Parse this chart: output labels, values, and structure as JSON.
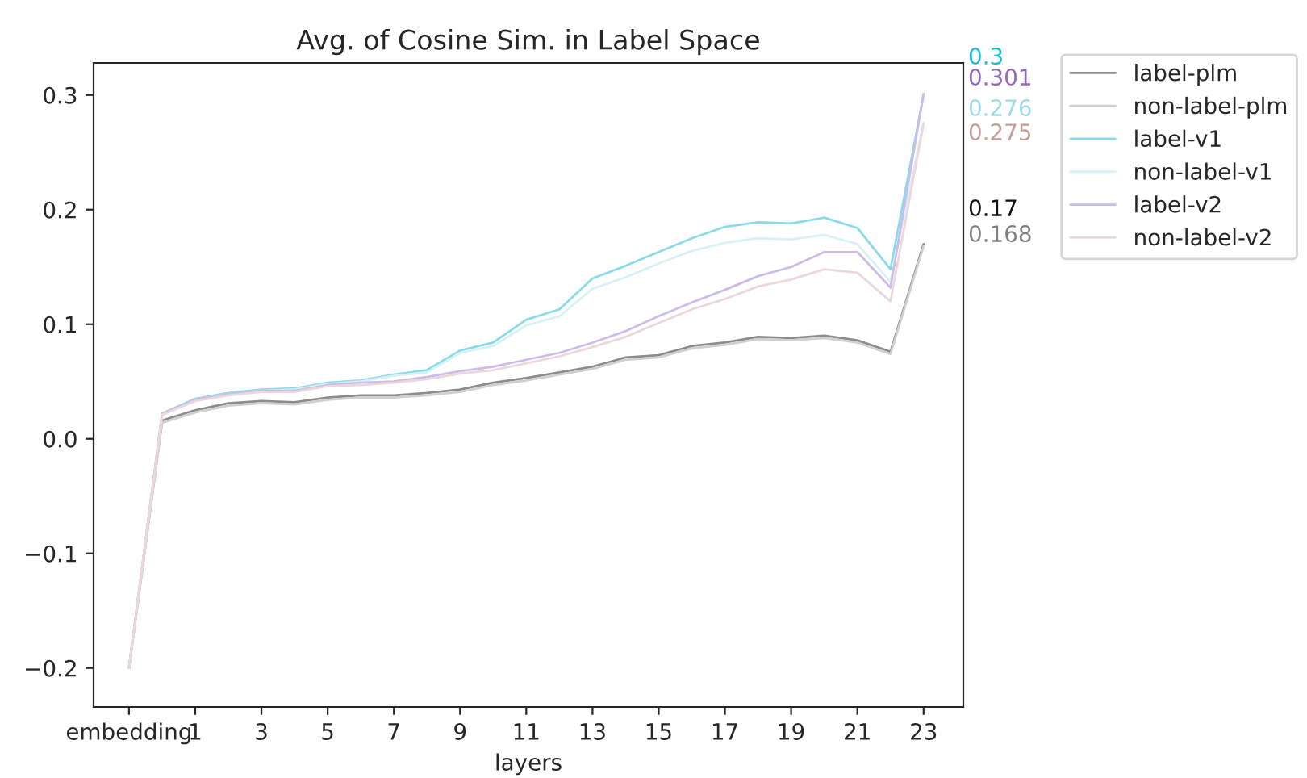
{
  "chart_data": {
    "type": "line",
    "title": "Avg. of Cosine Sim. in Label Space",
    "xlabel": "layers",
    "categories": [
      "embedding",
      null,
      "1",
      null,
      "3",
      null,
      "5",
      null,
      "7",
      null,
      "9",
      null,
      "11",
      null,
      "13",
      null,
      "15",
      null,
      "17",
      null,
      "19",
      null,
      "21",
      null,
      "23"
    ],
    "series": [
      {
        "name": "label-plm",
        "color": "#8c8c8c",
        "values": [
          -0.2,
          0.016,
          0.025,
          0.031,
          0.033,
          0.032,
          0.036,
          0.038,
          0.038,
          0.04,
          0.043,
          0.049,
          0.053,
          0.058,
          0.063,
          0.071,
          0.073,
          0.081,
          0.084,
          0.089,
          0.088,
          0.09,
          0.086,
          0.076,
          0.17
        ]
      },
      {
        "name": "non-label-plm",
        "color": "#d0d0d0",
        "values": [
          -0.2,
          0.014,
          0.023,
          0.029,
          0.031,
          0.03,
          0.034,
          0.036,
          0.036,
          0.038,
          0.041,
          0.047,
          0.051,
          0.056,
          0.061,
          0.069,
          0.071,
          0.079,
          0.082,
          0.087,
          0.086,
          0.088,
          0.084,
          0.074,
          0.168
        ]
      },
      {
        "name": "label-v1",
        "color": "#8adbe8",
        "values": [
          -0.2,
          0.022,
          0.035,
          0.04,
          0.043,
          0.044,
          0.049,
          0.051,
          0.056,
          0.06,
          0.077,
          0.084,
          0.104,
          0.113,
          0.14,
          0.151,
          0.163,
          0.175,
          0.185,
          0.189,
          0.188,
          0.193,
          0.184,
          0.148,
          0.3
        ]
      },
      {
        "name": "non-label-v1",
        "color": "#d8f1f5",
        "values": [
          -0.2,
          0.021,
          0.034,
          0.039,
          0.042,
          0.043,
          0.048,
          0.05,
          0.055,
          0.058,
          0.075,
          0.081,
          0.099,
          0.107,
          0.131,
          0.141,
          0.153,
          0.164,
          0.171,
          0.175,
          0.174,
          0.178,
          0.17,
          0.137,
          0.276
        ]
      },
      {
        "name": "label-v2",
        "color": "#cbbce9",
        "values": [
          -0.2,
          0.022,
          0.034,
          0.039,
          0.042,
          0.042,
          0.047,
          0.049,
          0.05,
          0.054,
          0.059,
          0.063,
          0.069,
          0.075,
          0.084,
          0.094,
          0.107,
          0.119,
          0.13,
          0.142,
          0.15,
          0.163,
          0.163,
          0.132,
          0.301
        ]
      },
      {
        "name": "non-label-v2",
        "color": "#ecd8da",
        "values": [
          -0.2,
          0.021,
          0.033,
          0.038,
          0.041,
          0.041,
          0.046,
          0.047,
          0.049,
          0.052,
          0.057,
          0.06,
          0.066,
          0.072,
          0.08,
          0.089,
          0.101,
          0.113,
          0.122,
          0.133,
          0.139,
          0.148,
          0.145,
          0.12,
          0.275
        ]
      }
    ],
    "annotations": [
      "0.3",
      "0.301",
      "0.276",
      "0.275",
      "0.17",
      "0.168"
    ],
    "ylim": [
      -0.234,
      0.328
    ],
    "yticks": [
      {
        "value": -0.2,
        "label": "−0.2"
      },
      {
        "value": -0.1,
        "label": "−0.1"
      },
      {
        "value": 0.0,
        "label": "0.0"
      },
      {
        "value": 0.1,
        "label": "0.1"
      },
      {
        "value": 0.2,
        "label": "0.2"
      },
      {
        "value": 0.3,
        "label": "0.3"
      }
    ],
    "legend": "top right",
    "grid": false,
    "marker": "none",
    "line_style": "solid"
  }
}
